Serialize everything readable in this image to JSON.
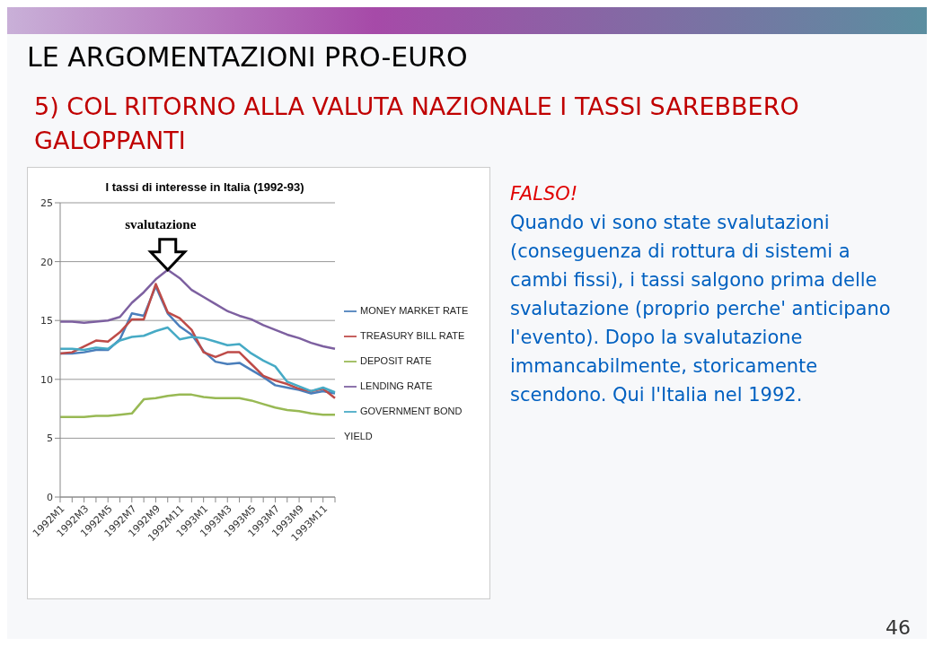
{
  "chart_data": {
    "type": "line",
    "title": "I tassi di interesse in Italia (1992-93)",
    "categories": [
      "1992M1",
      null,
      "1992M3",
      null,
      "1992M5",
      null,
      "1992M7",
      null,
      "1992M9",
      null,
      "1992M11",
      null,
      "1993M1",
      null,
      "1993M3",
      null,
      "1993M5",
      null,
      "1993M7",
      null,
      "1993M9",
      null,
      "1993M11",
      null
    ],
    "series": [
      {
        "name": "MONEY MARKET RATE",
        "color": "#4a7ebb",
        "values": [
          12.2,
          12.2,
          12.3,
          12.5,
          12.5,
          13.4,
          15.6,
          15.4,
          17.9,
          15.6,
          14.5,
          13.8,
          12.4,
          11.5,
          11.3,
          11.4,
          10.8,
          10.2,
          9.5,
          9.3,
          9.1,
          8.8,
          9.0,
          8.8
        ]
      },
      {
        "name": "TREASURY BILL RATE",
        "color": "#be4b48",
        "values": [
          12.2,
          12.3,
          12.8,
          13.3,
          13.2,
          14.0,
          15.1,
          15.1,
          18.1,
          15.7,
          15.2,
          14.2,
          12.3,
          11.9,
          12.3,
          12.3,
          11.3,
          10.3,
          9.9,
          9.6,
          9.2,
          9.0,
          9.2,
          8.4
        ]
      },
      {
        "name": "DEPOSIT RATE",
        "color": "#98b954",
        "values": [
          6.8,
          6.8,
          6.8,
          6.9,
          6.9,
          7.0,
          7.1,
          8.3,
          8.4,
          8.6,
          8.7,
          8.7,
          8.5,
          8.4,
          8.4,
          8.4,
          8.2,
          7.9,
          7.6,
          7.4,
          7.3,
          7.1,
          7.0,
          7.0
        ]
      },
      {
        "name": "LENDING RATE",
        "color": "#7d60a0",
        "values": [
          14.9,
          14.9,
          14.8,
          14.9,
          15.0,
          15.3,
          16.5,
          17.4,
          18.5,
          19.3,
          18.6,
          17.6,
          17.0,
          16.4,
          15.8,
          15.4,
          15.1,
          14.6,
          14.2,
          13.8,
          13.5,
          13.1,
          12.8,
          12.6
        ]
      },
      {
        "name": "GOVERNMENT BOND YIELD",
        "color": "#46aac5",
        "values": [
          12.6,
          12.6,
          12.5,
          12.7,
          12.6,
          13.3,
          13.6,
          13.7,
          14.1,
          14.4,
          13.4,
          13.6,
          13.5,
          13.2,
          12.9,
          13.0,
          12.2,
          11.6,
          11.1,
          9.8,
          9.4,
          9.0,
          9.3,
          8.9
        ]
      }
    ],
    "ylim": [
      0,
      25
    ],
    "yticks": [
      0,
      5,
      10,
      15,
      20,
      25
    ],
    "grid": "y",
    "legend": "right",
    "marker": "none",
    "line_style": "solid",
    "annotations": [
      "LE ARGOMENTAZIONI PRO-EURO",
      "5) COL RITORNO ALLA VALUTA NAZIONALE I TASSI SAREBBERO GALOPPANTI",
      "FALSO!",
      "Quando vi sono state svalutazioni (conseguenza di rottura di sistemi a cambi fissi), i tassi salgono prima delle svalutazione (proprio perche' anticipano l'evento). Dopo la svalutazione immancabilmente, storicamente scendono.    Qui l'Italia nel 1992.",
      {
        "text": "svalutazione",
        "y": 19.3
      },
      "46"
    ]
  }
}
